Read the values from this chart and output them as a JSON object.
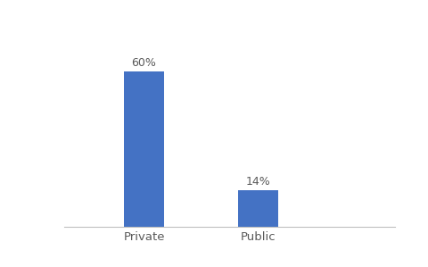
{
  "categories": [
    "Private",
    "Public"
  ],
  "values": [
    60,
    14
  ],
  "bar_color": "#4472C4",
  "label_format": [
    "60%",
    "14%"
  ],
  "background_color": "#ffffff",
  "ylim": [
    0,
    75
  ],
  "bar_width": 0.35,
  "label_fontsize": 9,
  "tick_fontsize": 9.5,
  "label_color": "#595959",
  "x_positions": [
    1,
    2
  ],
  "xlim": [
    0.3,
    3.2
  ]
}
